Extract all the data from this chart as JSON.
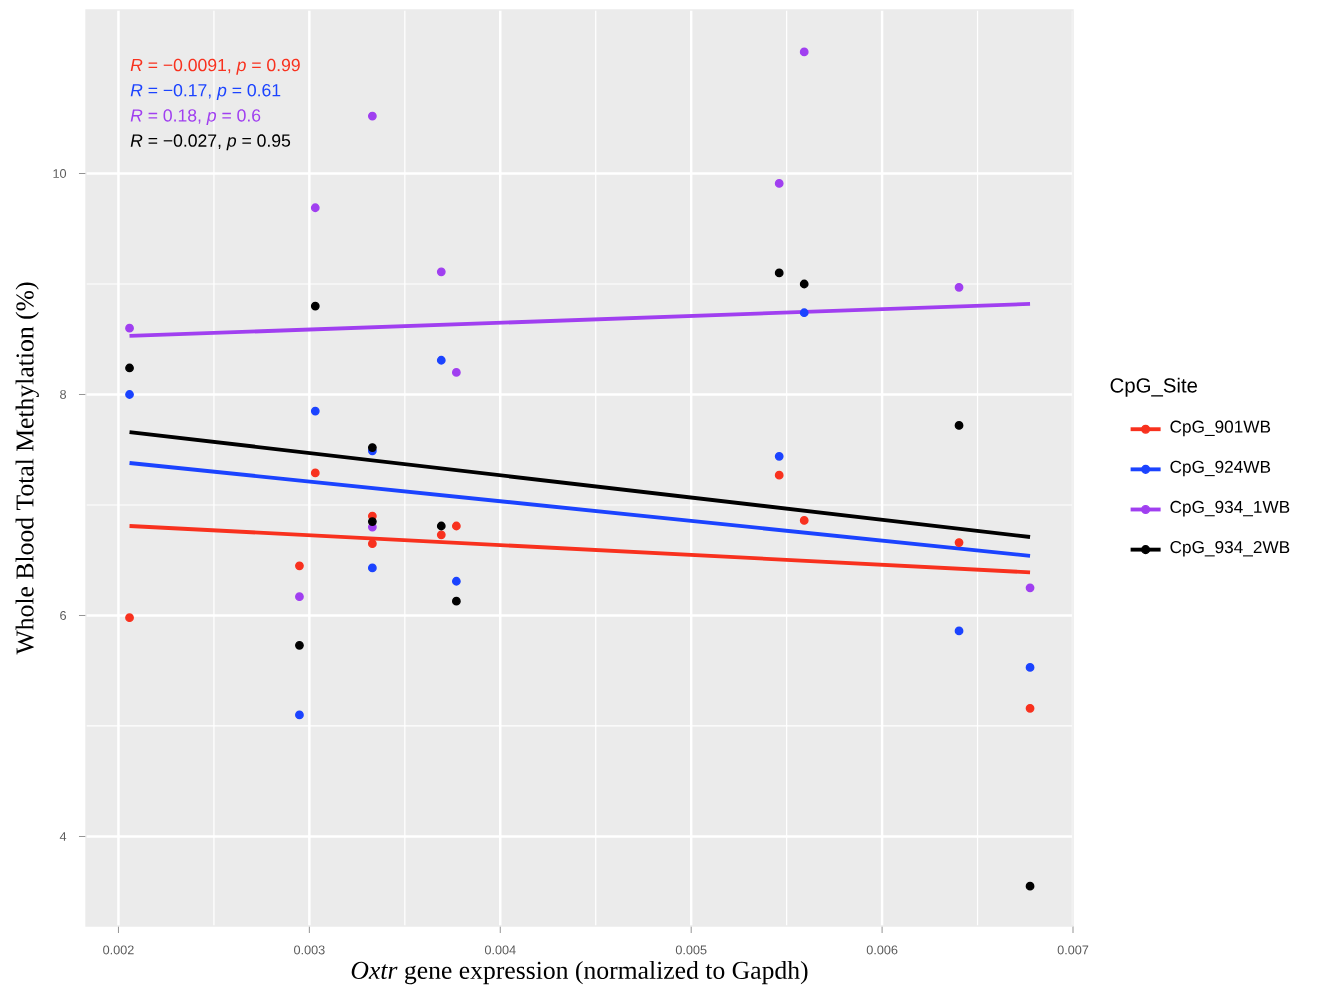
{
  "chart_data": {
    "type": "scatter",
    "xlabel": "*Oxtr* gene expression (normalized to Gapdh)",
    "ylabel": "Whole Blood Total Methylation (%)",
    "legend_title": "CpG_Site",
    "xlim": [
      0.00183,
      0.007
    ],
    "ylim": [
      3.19,
      11.48
    ],
    "xticks": [
      0.002,
      0.003,
      0.004,
      0.005,
      0.006,
      0.007
    ],
    "yticks": [
      4,
      6,
      8,
      10
    ],
    "grid": true,
    "legend": "right",
    "annotations": [
      "*R* = −0.0091, *p* = 0.99",
      "*R* = −0.17, *p* = 0.61",
      "*R* = 0.18, *p* = 0.6",
      "*R* = −0.027, *p* = 0.95"
    ],
    "series": [
      {
        "name": "CpG_901WB",
        "marker": "circle",
        "color": "#f8311e",
        "x": [
          0.002058,
          0.002948,
          0.003031,
          0.00333,
          0.00333,
          0.003691,
          0.00377,
          0.005461,
          0.005592,
          0.006403,
          0.006775
        ],
        "values": [
          5.98,
          6.45,
          7.29,
          6.9,
          6.65,
          6.73,
          6.81,
          7.27,
          6.86,
          6.66,
          5.16
        ]
      },
      {
        "name": "CpG_924WB",
        "marker": "circle",
        "color": "#1b43ff",
        "x": [
          0.002058,
          0.002948,
          0.003031,
          0.00333,
          0.00333,
          0.003691,
          0.00377,
          0.005461,
          0.005592,
          0.006403,
          0.006775
        ],
        "values": [
          8.0,
          5.1,
          7.85,
          7.49,
          6.43,
          8.31,
          6.31,
          7.44,
          8.74,
          5.86,
          5.53
        ]
      },
      {
        "name": "CpG_934_1WB",
        "marker": "circle",
        "color": "#a03ff0",
        "x": [
          0.002058,
          0.002948,
          0.003031,
          0.00333,
          0.00333,
          0.003691,
          0.00377,
          0.005461,
          0.005592,
          0.006403,
          0.006775
        ],
        "values": [
          8.6,
          6.17,
          9.69,
          10.52,
          6.8,
          9.11,
          8.2,
          9.91,
          11.1,
          8.97,
          6.25
        ]
      },
      {
        "name": "CpG_934_2WB",
        "marker": "circle",
        "color": "#000000",
        "x": [
          0.002058,
          0.002948,
          0.003031,
          0.00333,
          0.00333,
          0.003691,
          0.00377,
          0.005461,
          0.005592,
          0.006403,
          0.006775
        ],
        "values": [
          8.24,
          5.73,
          8.8,
          7.52,
          6.85,
          6.81,
          6.13,
          9.1,
          9.0,
          7.72,
          3.55
        ]
      },
      {
        "type": "line",
        "marker": "none",
        "color": "#f8311e",
        "x": [
          0.002058,
          0.006775
        ],
        "values": [
          6.81,
          6.39
        ]
      },
      {
        "type": "line",
        "marker": "none",
        "color": "#1b43ff",
        "x": [
          0.002058,
          0.006775
        ],
        "values": [
          7.38,
          6.54
        ]
      },
      {
        "type": "line",
        "marker": "none",
        "color": "#a03ff0",
        "x": [
          0.002058,
          0.006775
        ],
        "values": [
          8.53,
          8.82
        ]
      },
      {
        "type": "line",
        "marker": "none",
        "color": "#000000",
        "x": [
          0.002058,
          0.006775
        ],
        "values": [
          7.66,
          6.71
        ]
      }
    ]
  }
}
